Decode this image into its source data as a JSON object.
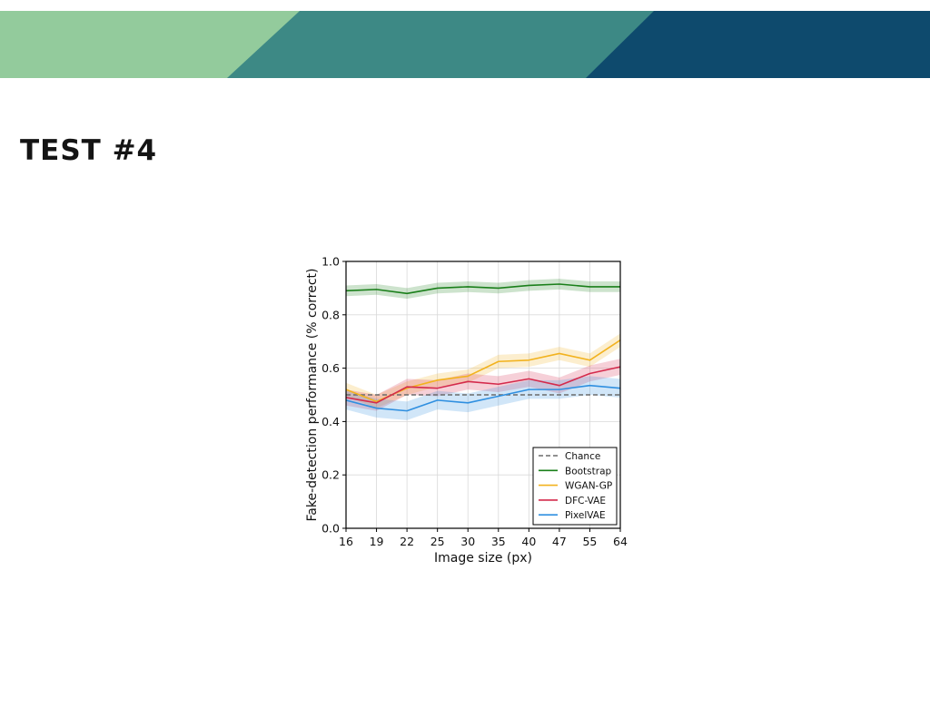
{
  "slide": {
    "title": "TEST #4",
    "banner_colors": [
      "#93cb9c",
      "#3d8985",
      "#0e4a6d"
    ]
  },
  "chart_data": {
    "type": "line",
    "xlabel": "Image size (px)",
    "ylabel": "Fake-detection performance (% correct)",
    "categories": [
      "16",
      "19",
      "22",
      "25",
      "30",
      "35",
      "40",
      "47",
      "55",
      "64"
    ],
    "ylim": [
      0,
      1.0
    ],
    "yticks": [
      "0.0",
      "0.2",
      "0.4",
      "0.6",
      "0.8",
      "1.0"
    ],
    "grid": true,
    "legend_position": "lower-right",
    "series": [
      {
        "name": "Chance",
        "color": "#6b6b6b",
        "dashed": true,
        "band": 0,
        "values": [
          0.5,
          0.5,
          0.5,
          0.5,
          0.5,
          0.5,
          0.5,
          0.5,
          0.5,
          0.5
        ]
      },
      {
        "name": "Bootstrap",
        "color": "#1a7f1a",
        "dashed": false,
        "band": 0.02,
        "values": [
          0.89,
          0.895,
          0.88,
          0.9,
          0.905,
          0.9,
          0.91,
          0.915,
          0.905,
          0.905
        ]
      },
      {
        "name": "WGAN-GP",
        "color": "#f2b21e",
        "dashed": false,
        "band": 0.025,
        "values": [
          0.52,
          0.475,
          0.525,
          0.555,
          0.57,
          0.625,
          0.63,
          0.655,
          0.63,
          0.705
        ]
      },
      {
        "name": "DFC-VAE",
        "color": "#d42a4c",
        "dashed": false,
        "band": 0.03,
        "values": [
          0.49,
          0.47,
          0.53,
          0.525,
          0.55,
          0.54,
          0.56,
          0.535,
          0.58,
          0.605
        ]
      },
      {
        "name": "PixelVAE",
        "color": "#2f8fe0",
        "dashed": false,
        "band": 0.035,
        "values": [
          0.48,
          0.45,
          0.44,
          0.48,
          0.47,
          0.495,
          0.52,
          0.52,
          0.535,
          0.525
        ]
      }
    ]
  }
}
